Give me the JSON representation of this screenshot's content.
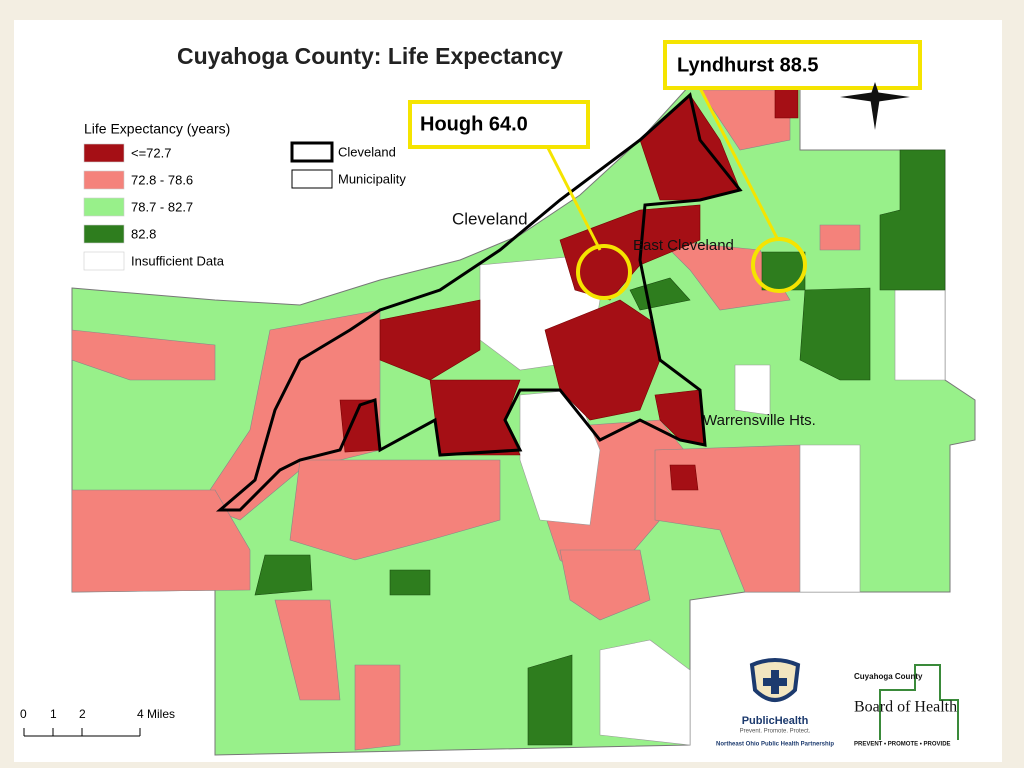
{
  "title": "Cuyahoga County: Life Expectancy",
  "legend": {
    "title": "Life Expectancy (years)",
    "items": [
      {
        "label": "<=72.7",
        "color": "#a50f15"
      },
      {
        "label": "72.8 - 78.6",
        "color": "#f4827b"
      },
      {
        "label": "78.7 - 82.7",
        "color": "#98f08a"
      },
      {
        "label": "82.8",
        "color": "#2e7d1e"
      },
      {
        "label": "Insufficient Data",
        "color": "#ffffff"
      }
    ]
  },
  "boundaries": [
    "Cleveland",
    "Municipality"
  ],
  "place_labels": [
    "Cleveland",
    "East Cleveland",
    "Warrensville Hts."
  ],
  "callouts": [
    "Hough 64.0",
    "Lyndhurst 88.5"
  ],
  "scale_labels": [
    "0",
    "1",
    "2",
    "4 Miles"
  ],
  "logos": {
    "public_health": "PublicHealth",
    "public_health_tagline": "Prevent. Promote. Protect.",
    "partnership": "Northeast Ohio Public Health Partnership",
    "board_county": "Cuyahoga County",
    "board_name": "Board of Health",
    "board_tagline": "PREVENT • PROMOTE • PROVIDE"
  }
}
